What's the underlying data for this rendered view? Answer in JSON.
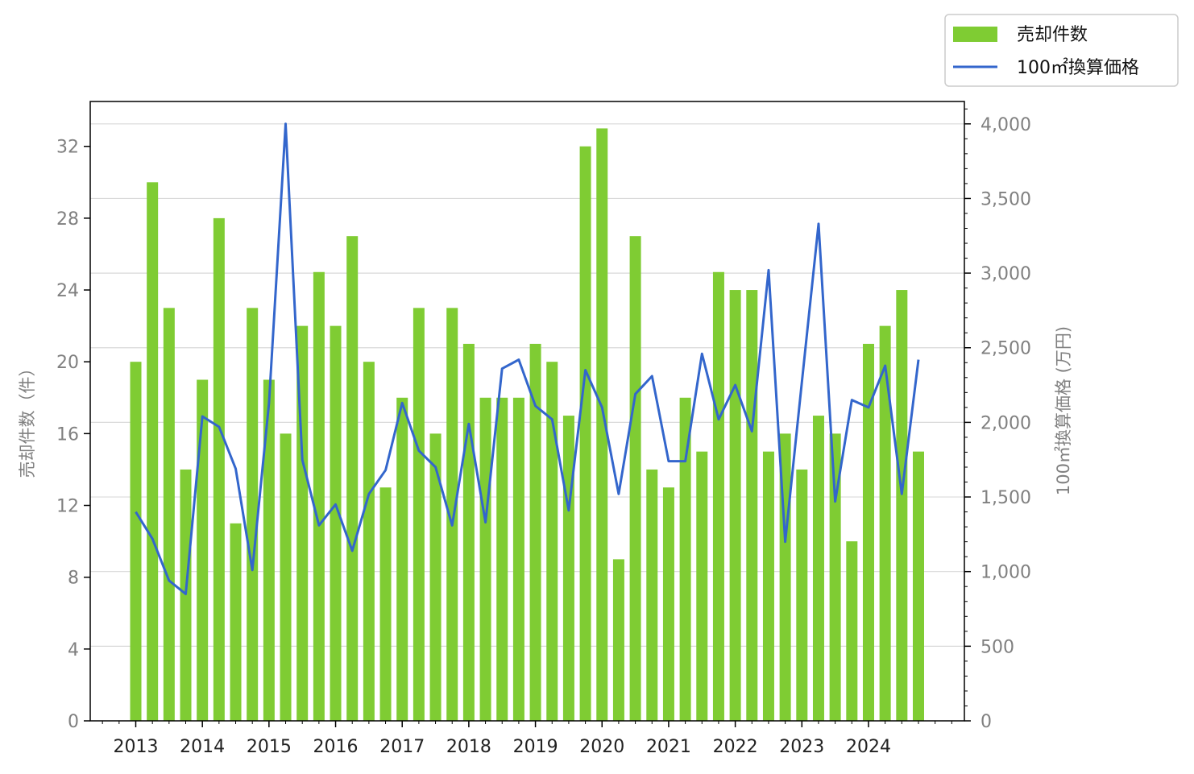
{
  "chart_data": {
    "type": "bar+line",
    "x_labels": [
      "2013",
      "2014",
      "2015",
      "2016",
      "2017",
      "2018",
      "2019",
      "2020",
      "2021",
      "2022",
      "2023",
      "2024"
    ],
    "periods_per_year": 4,
    "start_year": 2013,
    "y_left": {
      "label": "売却件数（件）",
      "lim": [
        0,
        34.5
      ],
      "ticks": [
        0,
        4,
        8,
        12,
        16,
        20,
        24,
        28,
        32
      ]
    },
    "y_right": {
      "label": "100㎡換算価格 (万円)",
      "lim": [
        0,
        4150
      ],
      "ticks": [
        0,
        500,
        1000,
        1500,
        2000,
        2500,
        3000,
        3500,
        4000
      ],
      "tick_labels": [
        "0",
        "500",
        "1,000",
        "1,500",
        "2,000",
        "2,500",
        "3,000",
        "3,500",
        "4,000"
      ]
    },
    "grid": "horizontal, right axis",
    "legend_position": "top-right, outside",
    "series": [
      {
        "name": "売却件数",
        "kind": "bar",
        "axis": "left",
        "color": "#7fcc33",
        "values": [
          20,
          30,
          23,
          14,
          19,
          28,
          11,
          23,
          19,
          16,
          22,
          25,
          22,
          27,
          20,
          13,
          18,
          23,
          16,
          23,
          21,
          18,
          18,
          18,
          21,
          20,
          17,
          32,
          33,
          9,
          27,
          14,
          13,
          18,
          15,
          25,
          24,
          24,
          15,
          16,
          14,
          17,
          16,
          10,
          21,
          22,
          24,
          15
        ]
      },
      {
        "name": "100㎡換算価格",
        "kind": "line",
        "axis": "right",
        "color": "#3366cc",
        "values": [
          1400,
          1220,
          940,
          850,
          2040,
          1970,
          1690,
          1010,
          2130,
          4000,
          1750,
          1310,
          1450,
          1140,
          1520,
          1680,
          2130,
          1810,
          1700,
          1310,
          1990,
          1330,
          2360,
          2420,
          2110,
          2020,
          1410,
          2350,
          2100,
          1520,
          2190,
          2310,
          1740,
          1740,
          2460,
          2020,
          2250,
          1940,
          3020,
          1200,
          2270,
          3330,
          1470,
          2150,
          2100,
          2380,
          1520,
          2420
        ]
      }
    ]
  }
}
